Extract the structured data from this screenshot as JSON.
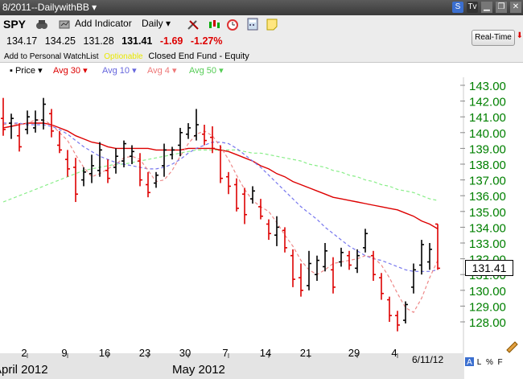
{
  "window": {
    "title": "8/2011--DailywithBB ▾"
  },
  "toolbar": {
    "symbol": "SPY",
    "add_indicator": "Add Indicator",
    "period": "Daily ▾",
    "realtime_label": "Real-Time"
  },
  "quote": {
    "open": "134.17",
    "high": "134.25",
    "low": "131.28",
    "last": "131.41",
    "change": "-1.69",
    "change_pct": "-1.27%"
  },
  "subinfo": {
    "watchlist": "Add to Personal WatchList",
    "optionable": "Optionable",
    "description": "Closed End Fund - Equity"
  },
  "legend": {
    "price": "Price ▾",
    "avg30": "Avg 30 ▾",
    "avg10": "Avg 10 ▾",
    "avg4": "Avg 4 ▾",
    "avg50": "Avg 50 ▾"
  },
  "colors": {
    "price": "#000000",
    "down": "#dd0000",
    "avg30": "#dd0000",
    "avg10": "#7777ee",
    "avg4": "#ee8888",
    "avg50": "#88ee88",
    "axis": "#008000"
  },
  "chart_data": {
    "type": "line",
    "title": "SPY",
    "y_ticks": [
      "143.00",
      "142.00",
      "141.00",
      "140.00",
      "139.00",
      "138.00",
      "137.00",
      "136.00",
      "135.00",
      "134.00",
      "133.00",
      "132.00",
      "131.00",
      "130.00",
      "129.00",
      "128.00"
    ],
    "current_price_label": "131.41",
    "x_tick_labels": [
      "2",
      "9",
      "16",
      "23",
      "30",
      "7",
      "14",
      "21",
      "29",
      "4"
    ],
    "month_labels": [
      "April 2012",
      "May 2012"
    ],
    "last_date": "6/11/12",
    "ylim": [
      127.2,
      143.6
    ],
    "bars": [
      {
        "h": 142.2,
        "l": 139.8,
        "o": 140.9,
        "c": 140.2,
        "up": false
      },
      {
        "h": 141.2,
        "l": 139.6,
        "o": 140.6,
        "c": 140.9,
        "up": true
      },
      {
        "h": 140.6,
        "l": 138.8,
        "o": 139.8,
        "c": 139.1,
        "up": false
      },
      {
        "h": 141.4,
        "l": 139.9,
        "o": 140.2,
        "c": 141.0,
        "up": true
      },
      {
        "h": 141.4,
        "l": 140.0,
        "o": 140.3,
        "c": 140.8,
        "up": true
      },
      {
        "h": 142.2,
        "l": 140.2,
        "o": 140.8,
        "c": 141.8,
        "up": true
      },
      {
        "h": 141.5,
        "l": 139.7,
        "o": 141.2,
        "c": 140.1,
        "up": false
      },
      {
        "h": 140.1,
        "l": 138.7,
        "o": 139.2,
        "c": 138.9,
        "up": false
      },
      {
        "h": 138.9,
        "l": 137.2,
        "o": 138.3,
        "c": 137.7,
        "up": false
      },
      {
        "h": 138.4,
        "l": 135.6,
        "o": 137.8,
        "c": 136.1,
        "up": false
      },
      {
        "h": 137.8,
        "l": 136.6,
        "o": 137.0,
        "c": 137.5,
        "up": true
      },
      {
        "h": 138.6,
        "l": 136.8,
        "o": 137.4,
        "c": 137.9,
        "up": true
      },
      {
        "h": 139.4,
        "l": 137.2,
        "o": 137.6,
        "c": 138.9,
        "up": true
      },
      {
        "h": 138.3,
        "l": 136.8,
        "o": 137.6,
        "c": 137.1,
        "up": false
      },
      {
        "h": 139.0,
        "l": 137.4,
        "o": 137.8,
        "c": 138.5,
        "up": true
      },
      {
        "h": 139.5,
        "l": 137.8,
        "o": 138.2,
        "c": 139.3,
        "up": true
      },
      {
        "h": 139.2,
        "l": 138.0,
        "o": 138.5,
        "c": 138.8,
        "up": true
      },
      {
        "h": 138.7,
        "l": 136.6,
        "o": 138.2,
        "c": 137.0,
        "up": false
      },
      {
        "h": 137.5,
        "l": 135.9,
        "o": 136.7,
        "c": 136.2,
        "up": false
      },
      {
        "h": 137.5,
        "l": 136.5,
        "o": 136.8,
        "c": 137.3,
        "up": true
      },
      {
        "h": 139.3,
        "l": 137.2,
        "o": 137.9,
        "c": 138.9,
        "up": true
      },
      {
        "h": 139.1,
        "l": 138.3,
        "o": 138.6,
        "c": 138.9,
        "up": true
      },
      {
        "h": 140.3,
        "l": 138.5,
        "o": 139.2,
        "c": 140.0,
        "up": true
      },
      {
        "h": 140.6,
        "l": 139.6,
        "o": 139.9,
        "c": 140.3,
        "up": true
      },
      {
        "h": 141.5,
        "l": 139.5,
        "o": 139.8,
        "c": 140.5,
        "up": true
      },
      {
        "h": 140.5,
        "l": 139.2,
        "o": 139.9,
        "c": 139.5,
        "up": false
      },
      {
        "h": 140.4,
        "l": 138.7,
        "o": 139.7,
        "c": 139.0,
        "up": false
      },
      {
        "h": 139.2,
        "l": 136.8,
        "o": 138.9,
        "c": 137.1,
        "up": false
      },
      {
        "h": 137.5,
        "l": 136.1,
        "o": 137.2,
        "c": 136.6,
        "up": false
      },
      {
        "h": 137.1,
        "l": 135.0,
        "o": 136.7,
        "c": 135.2,
        "up": false
      },
      {
        "h": 136.5,
        "l": 134.2,
        "o": 136.1,
        "c": 134.8,
        "up": false
      },
      {
        "h": 136.6,
        "l": 135.5,
        "o": 135.8,
        "c": 136.3,
        "up": true
      },
      {
        "h": 135.8,
        "l": 134.5,
        "o": 135.3,
        "c": 134.7,
        "up": false
      },
      {
        "h": 134.5,
        "l": 133.2,
        "o": 134.2,
        "c": 133.6,
        "up": false
      },
      {
        "h": 134.7,
        "l": 132.8,
        "o": 133.5,
        "c": 134.0,
        "up": true
      },
      {
        "h": 134.0,
        "l": 132.4,
        "o": 133.8,
        "c": 132.7,
        "up": false
      },
      {
        "h": 132.6,
        "l": 130.2,
        "o": 132.2,
        "c": 130.7,
        "up": false
      },
      {
        "h": 131.7,
        "l": 129.6,
        "o": 130.8,
        "c": 130.0,
        "up": false
      },
      {
        "h": 132.5,
        "l": 130.0,
        "o": 130.3,
        "c": 131.7,
        "up": true
      },
      {
        "h": 132.2,
        "l": 130.6,
        "o": 131.0,
        "c": 131.9,
        "up": true
      },
      {
        "h": 133.0,
        "l": 131.2,
        "o": 131.5,
        "c": 132.5,
        "up": true
      },
      {
        "h": 132.1,
        "l": 129.8,
        "o": 131.3,
        "c": 130.2,
        "up": false
      },
      {
        "h": 132.7,
        "l": 131.5,
        "o": 131.8,
        "c": 132.4,
        "up": true
      },
      {
        "h": 132.5,
        "l": 131.3,
        "o": 132.2,
        "c": 131.6,
        "up": false
      },
      {
        "h": 132.6,
        "l": 131.1,
        "o": 131.4,
        "c": 132.2,
        "up": true
      },
      {
        "h": 133.9,
        "l": 132.4,
        "o": 132.7,
        "c": 133.6,
        "up": true
      },
      {
        "h": 132.5,
        "l": 130.6,
        "o": 132.2,
        "c": 131.0,
        "up": false
      },
      {
        "h": 131.1,
        "l": 129.4,
        "o": 130.8,
        "c": 129.8,
        "up": false
      },
      {
        "h": 129.6,
        "l": 128.0,
        "o": 129.4,
        "c": 128.4,
        "up": false
      },
      {
        "h": 128.7,
        "l": 127.4,
        "o": 128.4,
        "c": 127.8,
        "up": false
      },
      {
        "h": 129.3,
        "l": 127.9,
        "o": 128.1,
        "c": 129.1,
        "up": true
      },
      {
        "h": 131.7,
        "l": 129.8,
        "o": 130.2,
        "c": 131.3,
        "up": true
      },
      {
        "h": 133.2,
        "l": 131.0,
        "o": 131.6,
        "c": 132.9,
        "up": true
      },
      {
        "h": 133.0,
        "l": 131.3,
        "o": 131.8,
        "c": 132.6,
        "up": true
      },
      {
        "h": 134.2,
        "l": 131.3,
        "o": 134.2,
        "c": 131.4,
        "up": false
      }
    ],
    "avg30": [
      140.3,
      140.4,
      140.5,
      140.6,
      140.6,
      140.6,
      140.5,
      140.3,
      140.1,
      139.8,
      139.6,
      139.4,
      139.3,
      139.1,
      139.0,
      139.0,
      139.0,
      139.0,
      139.0,
      138.9,
      138.9,
      138.9,
      138.9,
      139.0,
      139.0,
      139.0,
      139.0,
      138.9,
      138.8,
      138.6,
      138.4,
      138.2,
      137.9,
      137.7,
      137.4,
      137.2,
      136.9,
      136.7,
      136.5,
      136.3,
      136.1,
      135.9,
      135.8,
      135.7,
      135.6,
      135.5,
      135.4,
      135.3,
      135.2,
      135.1,
      134.9,
      134.7,
      134.4,
      134.2,
      133.9
    ],
    "avg10": [
      140.6,
      140.6,
      140.6,
      140.5,
      140.5,
      140.5,
      140.4,
      140.2,
      139.9,
      139.5,
      139.1,
      138.8,
      138.5,
      138.3,
      138.1,
      138.0,
      137.9,
      137.8,
      137.7,
      137.7,
      137.8,
      138.0,
      138.3,
      138.7,
      139.0,
      139.2,
      139.4,
      139.4,
      139.3,
      139.0,
      138.6,
      138.2,
      137.8,
      137.3,
      136.8,
      136.3,
      135.8,
      135.3,
      134.9,
      134.5,
      134.0,
      133.6,
      133.2,
      132.8,
      132.5,
      132.2,
      132.0,
      131.9,
      131.7,
      131.5,
      131.3,
      131.2,
      131.2,
      131.2,
      131.3
    ],
    "avg4": [
      140.5,
      140.6,
      140.5,
      140.6,
      140.8,
      140.8,
      140.5,
      140.0,
      139.5,
      138.6,
      137.8,
      137.2,
      137.4,
      137.7,
      138.0,
      138.4,
      138.5,
      138.3,
      137.6,
      136.9,
      137.0,
      137.6,
      138.5,
      139.3,
      139.9,
      140.1,
      139.8,
      139.1,
      138.3,
      137.3,
      136.4,
      135.7,
      135.3,
      135.0,
      134.3,
      133.5,
      132.8,
      131.9,
      131.3,
      131.0,
      131.3,
      131.7,
      131.8,
      131.9,
      132.0,
      132.2,
      132.1,
      131.6,
      130.8,
      129.8,
      128.9,
      128.6,
      129.5,
      130.8,
      131.9
    ],
    "avg50": [
      135.6,
      135.8,
      136.0,
      136.2,
      136.4,
      136.6,
      136.8,
      137.0,
      137.2,
      137.4,
      137.6,
      137.7,
      137.8,
      137.9,
      138.0,
      138.0,
      138.1,
      138.2,
      138.3,
      138.4,
      138.5,
      138.6,
      138.7,
      138.8,
      138.9,
      138.9,
      138.9,
      138.9,
      138.9,
      138.9,
      138.8,
      138.7,
      138.7,
      138.6,
      138.5,
      138.4,
      138.3,
      138.2,
      138.0,
      137.9,
      137.8,
      137.6,
      137.5,
      137.3,
      137.2,
      137.0,
      136.9,
      136.7,
      136.6,
      136.4,
      136.3,
      136.2,
      136.0,
      135.8,
      135.7
    ]
  }
}
